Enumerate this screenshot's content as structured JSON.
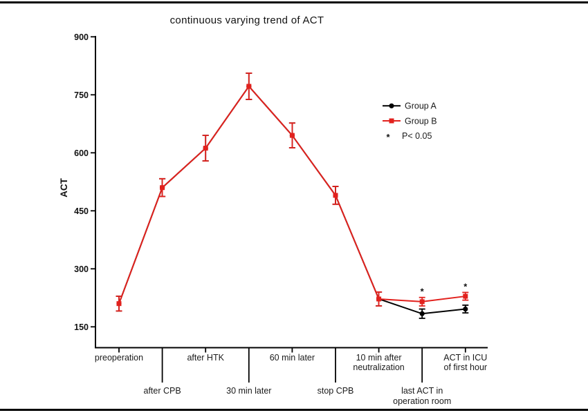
{
  "chart_data": {
    "type": "line",
    "title": "continuous varying trend of ACT",
    "ylabel": "ACT",
    "xlabel": "",
    "ylim": [
      90,
      900
    ],
    "yticks": [
      150,
      300,
      450,
      600,
      750,
      900
    ],
    "grid": false,
    "categories": [
      "preoperation",
      "after CPB",
      "after HTK",
      "30 min later",
      "60 min later",
      "stop CPB",
      "10 min after neutralization",
      "last ACT in operation room",
      "ACT in ICU of first hour"
    ],
    "category_label_lines": [
      [
        "preoperation"
      ],
      [
        "after CPB"
      ],
      [
        "after HTK"
      ],
      [
        "30 min later"
      ],
      [
        "60 min later"
      ],
      [
        "stop CPB"
      ],
      [
        "10 min after",
        "neutralization"
      ],
      [
        "last ACT in",
        "operation room"
      ],
      [
        "ACT in ICU",
        "of first hour"
      ]
    ],
    "series": [
      {
        "name": "Group A",
        "color": "#000000",
        "marker": "circle",
        "values": [
          210,
          510,
          612,
          772,
          645,
          490,
          222,
          184,
          196
        ],
        "errors": [
          19,
          23,
          33,
          34,
          32,
          23,
          18,
          12,
          10
        ]
      },
      {
        "name": "Group B",
        "color": "#e2211d",
        "marker": "square",
        "values": [
          210,
          510,
          612,
          772,
          645,
          490,
          222,
          215,
          229
        ],
        "errors": [
          19,
          23,
          33,
          34,
          32,
          23,
          18,
          11,
          10
        ]
      }
    ],
    "significance": {
      "symbol": "*",
      "note_text": "P< 0.05",
      "marked_indices": [
        7,
        8
      ],
      "applies_to_series": "Group B"
    },
    "legend": {
      "position": "inside-upper-right",
      "entries": [
        "Group A",
        "Group B"
      ]
    }
  }
}
